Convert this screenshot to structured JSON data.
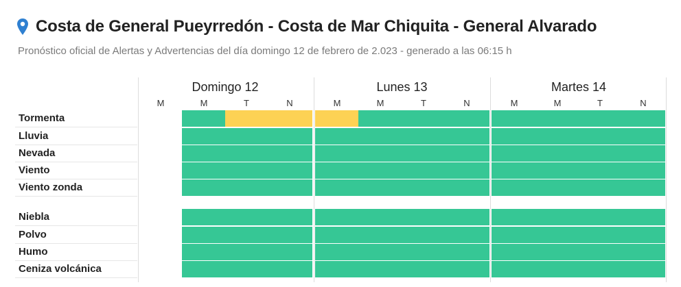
{
  "header": {
    "title": "Costa de General Pueyrredón - Costa de Mar Chiquita - General Alvarado",
    "subtitle": "Pronóstico oficial de Alertas y Advertencias del día domingo 12 de febrero de 2.023 - generado a las 06:15 h"
  },
  "icons": {
    "location": "map-pin-icon"
  },
  "colors": {
    "no_alert": "#36c795",
    "yellow_alert": "#fdd254",
    "pin": "#2f80d1"
  },
  "days": [
    {
      "label": "Domingo 12",
      "slots": [
        "M",
        "M",
        "T",
        "N"
      ]
    },
    {
      "label": "Lunes 13",
      "slots": [
        "M",
        "M",
        "T",
        "N"
      ]
    },
    {
      "label": "Martes 14",
      "slots": [
        "M",
        "M",
        "T",
        "N"
      ]
    }
  ],
  "groups": [
    {
      "rows": [
        {
          "label": "Tormenta",
          "levels": [
            null,
            "green",
            "yellow",
            "yellow",
            "yellow",
            "green",
            "green",
            "green",
            "green",
            "green",
            "green",
            "green"
          ]
        },
        {
          "label": "Lluvia",
          "levels": [
            null,
            "green",
            "green",
            "green",
            "green",
            "green",
            "green",
            "green",
            "green",
            "green",
            "green",
            "green"
          ]
        },
        {
          "label": "Nevada",
          "levels": [
            null,
            "green",
            "green",
            "green",
            "green",
            "green",
            "green",
            "green",
            "green",
            "green",
            "green",
            "green"
          ]
        },
        {
          "label": "Viento",
          "levels": [
            null,
            "green",
            "green",
            "green",
            "green",
            "green",
            "green",
            "green",
            "green",
            "green",
            "green",
            "green"
          ]
        },
        {
          "label": "Viento zonda",
          "levels": [
            null,
            "green",
            "green",
            "green",
            "green",
            "green",
            "green",
            "green",
            "green",
            "green",
            "green",
            "green"
          ]
        }
      ]
    },
    {
      "rows": [
        {
          "label": "Niebla",
          "levels": [
            null,
            "green",
            "green",
            "green",
            "green",
            "green",
            "green",
            "green",
            "green",
            "green",
            "green",
            "green"
          ]
        },
        {
          "label": "Polvo",
          "levels": [
            null,
            "green",
            "green",
            "green",
            "green",
            "green",
            "green",
            "green",
            "green",
            "green",
            "green",
            "green"
          ]
        },
        {
          "label": "Humo",
          "levels": [
            null,
            "green",
            "green",
            "green",
            "green",
            "green",
            "green",
            "green",
            "green",
            "green",
            "green",
            "green"
          ]
        },
        {
          "label": "Ceniza volcánica",
          "levels": [
            null,
            "green",
            "green",
            "green",
            "green",
            "green",
            "green",
            "green",
            "green",
            "green",
            "green",
            "green"
          ]
        }
      ]
    }
  ]
}
